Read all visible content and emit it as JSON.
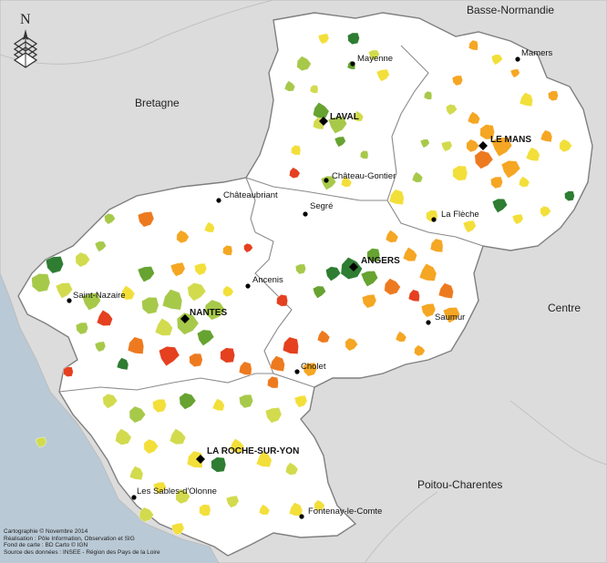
{
  "regions": {
    "basse_normandie": "Basse-Normandie",
    "bretagne": "Bretagne",
    "centre": "Centre",
    "poitou_charentes": "Poitou-Charentes"
  },
  "cities": {
    "mayenne": "Mayenne",
    "mamers": "Mamers",
    "laval": "LAVAL",
    "le_mans": "LE MANS",
    "chateau_gontier": "Château-Gontier",
    "chateaubriant": "Châteaubriant",
    "segre": "Segré",
    "la_fleche": "La Flèche",
    "angers": "ANGERS",
    "ancenis": "Ancenis",
    "saint_nazaire": "Saint-Nazaire",
    "nantes": "NANTES",
    "saumur": "Saumur",
    "cholet": "Cholet",
    "la_roche_sur_yon": "LA ROCHE-SUR-YON",
    "les_sables": "Les Sables-d'Olonne",
    "fontenay": "Fontenay-le-Comte"
  },
  "compass": {
    "letter": "N"
  },
  "credits": [
    "Cartographie © Novembre 2014",
    "Réalisation : Pôle Information, Observation et SIG",
    "Fond de carte : BD Carto © IGN",
    "Source des données : INSEE - Région des Pays de la Loire"
  ],
  "colors": {
    "sea": "#b9c9d6",
    "outside_land": "#dcdcdc",
    "region_fill": "#ffffff",
    "boundary": "#8a8a8a",
    "dark_green": "#2e7d32",
    "green": "#66a330",
    "light_green": "#a7c94a",
    "yellow_green": "#d2db4e",
    "yellow": "#f3df3a",
    "orange": "#f5a623",
    "dark_orange": "#ee7a1f",
    "red": "#e5401f"
  }
}
